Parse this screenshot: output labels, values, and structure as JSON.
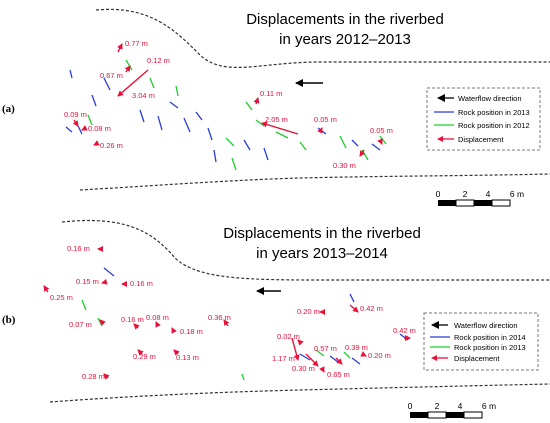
{
  "colors": {
    "displacement": "#e8113a",
    "rock_blue": "#2b3bd6",
    "rock_green": "#1fcf2f",
    "bank": "#333333",
    "arrow": "#000000"
  },
  "panel_a": {
    "label": "(a)",
    "title_line1": "Displacements in the riverbed",
    "title_line2": "in years 2012–2013",
    "legend": [
      {
        "text": "Waterflow direction",
        "icon": "black-arrow-icon"
      },
      {
        "text": "Rock position in 2013",
        "icon": "blue-line-icon"
      },
      {
        "text": "Rock position in 2012",
        "icon": "green-line-icon"
      },
      {
        "text": "Displacement",
        "icon": "red-arrow-icon"
      }
    ],
    "scale": {
      "ticks": [
        "0",
        "2",
        "4",
        "6 m"
      ]
    },
    "displacements": [
      "0.77 m",
      "0.12 m",
      "0.67 m",
      "3.04 m",
      "0.09 m",
      "0.08 m",
      "0.26 m",
      "0.11 m",
      "2.05 m",
      "0.05 m",
      "0.05 m",
      "0.30 m"
    ]
  },
  "panel_b": {
    "label": "(b)",
    "title_line1": "Displacements in the riverbed",
    "title_line2": "in years 2013–2014",
    "legend": [
      {
        "text": "Waterflow direction",
        "icon": "black-arrow-icon"
      },
      {
        "text": "Rock position in 2014",
        "icon": "blue-line-icon"
      },
      {
        "text": "Rock position in 2013",
        "icon": "green-line-icon"
      },
      {
        "text": "Displacement",
        "icon": "red-arrow-icon"
      }
    ],
    "scale": {
      "ticks": [
        "0",
        "2",
        "4",
        "6 m"
      ]
    },
    "displacements": [
      "0.16 m",
      "0.15 m",
      "0.16 m",
      "0.25 m",
      "0.07 m",
      "0.16 m",
      "0.08 m",
      "0.18 m",
      "0.36 m",
      "0.29 m",
      "0.13 m",
      "0.28 m",
      "0.20 m",
      "0.42 m",
      "0.02 m",
      "0.42 m",
      "0.57 m",
      "0.39 m",
      "0.20 m",
      "1.17 m",
      "0.30 m",
      "0.65 m"
    ]
  }
}
